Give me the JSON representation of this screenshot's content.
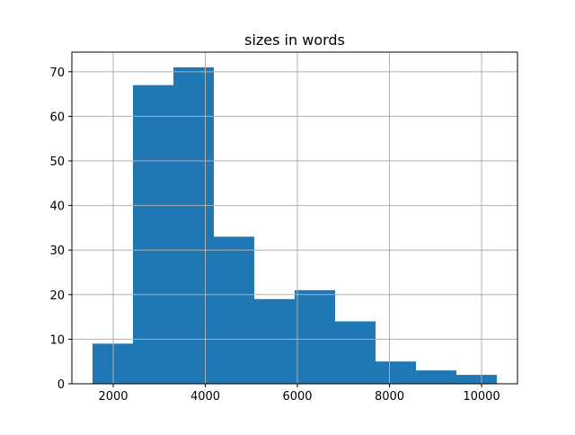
{
  "chart_data": {
    "type": "bar",
    "subtype": "histogram",
    "title": "sizes in words",
    "xlabel": "",
    "ylabel": "",
    "bin_edges": [
      1551,
      2429,
      3307,
      4185,
      5063,
      5941,
      6819,
      7697,
      8575,
      9453,
      10331
    ],
    "values": [
      9,
      67,
      71,
      33,
      19,
      21,
      14,
      5,
      3,
      2
    ],
    "xlim": [
      1102,
      10780
    ],
    "ylim": [
      0,
      74.4
    ],
    "xticks": [
      2000,
      4000,
      6000,
      8000,
      10000
    ],
    "yticks": [
      0,
      10,
      20,
      30,
      40,
      50,
      60,
      70
    ],
    "grid": true,
    "bar_color": "#1f77b4",
    "grid_color": "#b0b0b0"
  }
}
